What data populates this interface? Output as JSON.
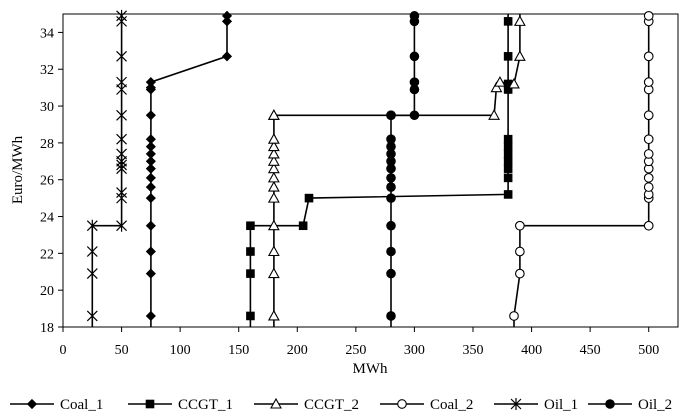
{
  "chart_data": {
    "type": "line",
    "title": "",
    "xlabel": "MWh",
    "ylabel": "Euro/MWh",
    "xlim": [
      0,
      525
    ],
    "ylim": [
      18,
      35
    ],
    "xticks": [
      0,
      50,
      100,
      150,
      200,
      250,
      300,
      350,
      400,
      450,
      500
    ],
    "yticks": [
      18,
      20,
      22,
      24,
      26,
      28,
      30,
      32,
      34
    ],
    "grid": false,
    "legend_position": "bottom",
    "series": [
      {
        "name": "Coal_1",
        "marker": "diamond",
        "x": [
          75,
          75,
          75,
          75,
          75,
          75,
          75,
          75,
          75,
          75,
          75,
          75,
          75,
          75,
          75,
          75,
          140,
          140,
          140
        ],
        "y": [
          18.6,
          20.9,
          22.1,
          23.5,
          25.0,
          25.6,
          26.1,
          26.6,
          27.0,
          27.4,
          27.8,
          28.2,
          29.5,
          30.9,
          31.0,
          31.3,
          32.7,
          34.6,
          34.9
        ]
      },
      {
        "name": "CCGT_1",
        "marker": "square",
        "x": [
          160,
          160,
          160,
          160,
          205,
          210,
          380,
          380,
          380,
          380,
          380,
          380,
          380,
          380,
          380,
          380,
          380
        ],
        "y": [
          18.6,
          20.9,
          22.1,
          23.5,
          23.5,
          25.0,
          25.2,
          26.1,
          26.6,
          27.0,
          27.4,
          27.8,
          28.2,
          30.9,
          31.2,
          32.7,
          34.6
        ]
      },
      {
        "name": "CCGT_2",
        "marker": "triangle",
        "x": [
          180,
          180,
          180,
          180,
          180,
          180,
          180,
          180,
          180,
          180,
          180,
          180,
          180,
          180,
          368,
          370,
          373,
          385,
          390,
          390
        ],
        "y": [
          18.6,
          20.9,
          22.1,
          23.5,
          25.0,
          25.6,
          26.1,
          26.6,
          27.0,
          27.4,
          27.8,
          28.2,
          29.5,
          29.5,
          29.5,
          31.0,
          31.3,
          31.2,
          32.7,
          34.6
        ]
      },
      {
        "name": "Coal_2",
        "marker": "circle-open",
        "x": [
          385,
          390,
          390,
          390,
          500,
          500,
          500,
          500,
          500,
          500,
          500,
          500,
          500,
          500,
          500,
          500,
          500,
          500,
          500
        ],
        "y": [
          18.6,
          20.9,
          22.1,
          23.5,
          23.5,
          25.0,
          25.2,
          25.6,
          26.1,
          26.6,
          27.0,
          27.4,
          28.2,
          29.5,
          30.9,
          31.3,
          32.7,
          34.6,
          34.9
        ]
      },
      {
        "name": "Oil_1",
        "marker": "star",
        "x": [
          25,
          25,
          25,
          25,
          50,
          50,
          50,
          50,
          50,
          50,
          50,
          50,
          50,
          50,
          50,
          50,
          50,
          50
        ],
        "y": [
          18.6,
          20.9,
          22.1,
          23.5,
          23.5,
          25.0,
          25.3,
          26.6,
          26.8,
          27.0,
          27.4,
          28.2,
          29.5,
          30.9,
          31.3,
          32.7,
          34.6,
          34.9
        ]
      },
      {
        "name": "Oil_2",
        "marker": "circle",
        "x": [
          280,
          280,
          280,
          280,
          280,
          280,
          280,
          280,
          280,
          280,
          280,
          280,
          280,
          280,
          280,
          300,
          300,
          300,
          300,
          300,
          300
        ],
        "y": [
          18.6,
          20.9,
          22.1,
          23.5,
          25.0,
          25.6,
          26.1,
          26.6,
          27.0,
          27.4,
          27.8,
          28.2,
          29.5,
          29.5,
          29.5,
          29.5,
          30.9,
          31.3,
          32.7,
          34.6,
          34.9
        ]
      }
    ]
  }
}
